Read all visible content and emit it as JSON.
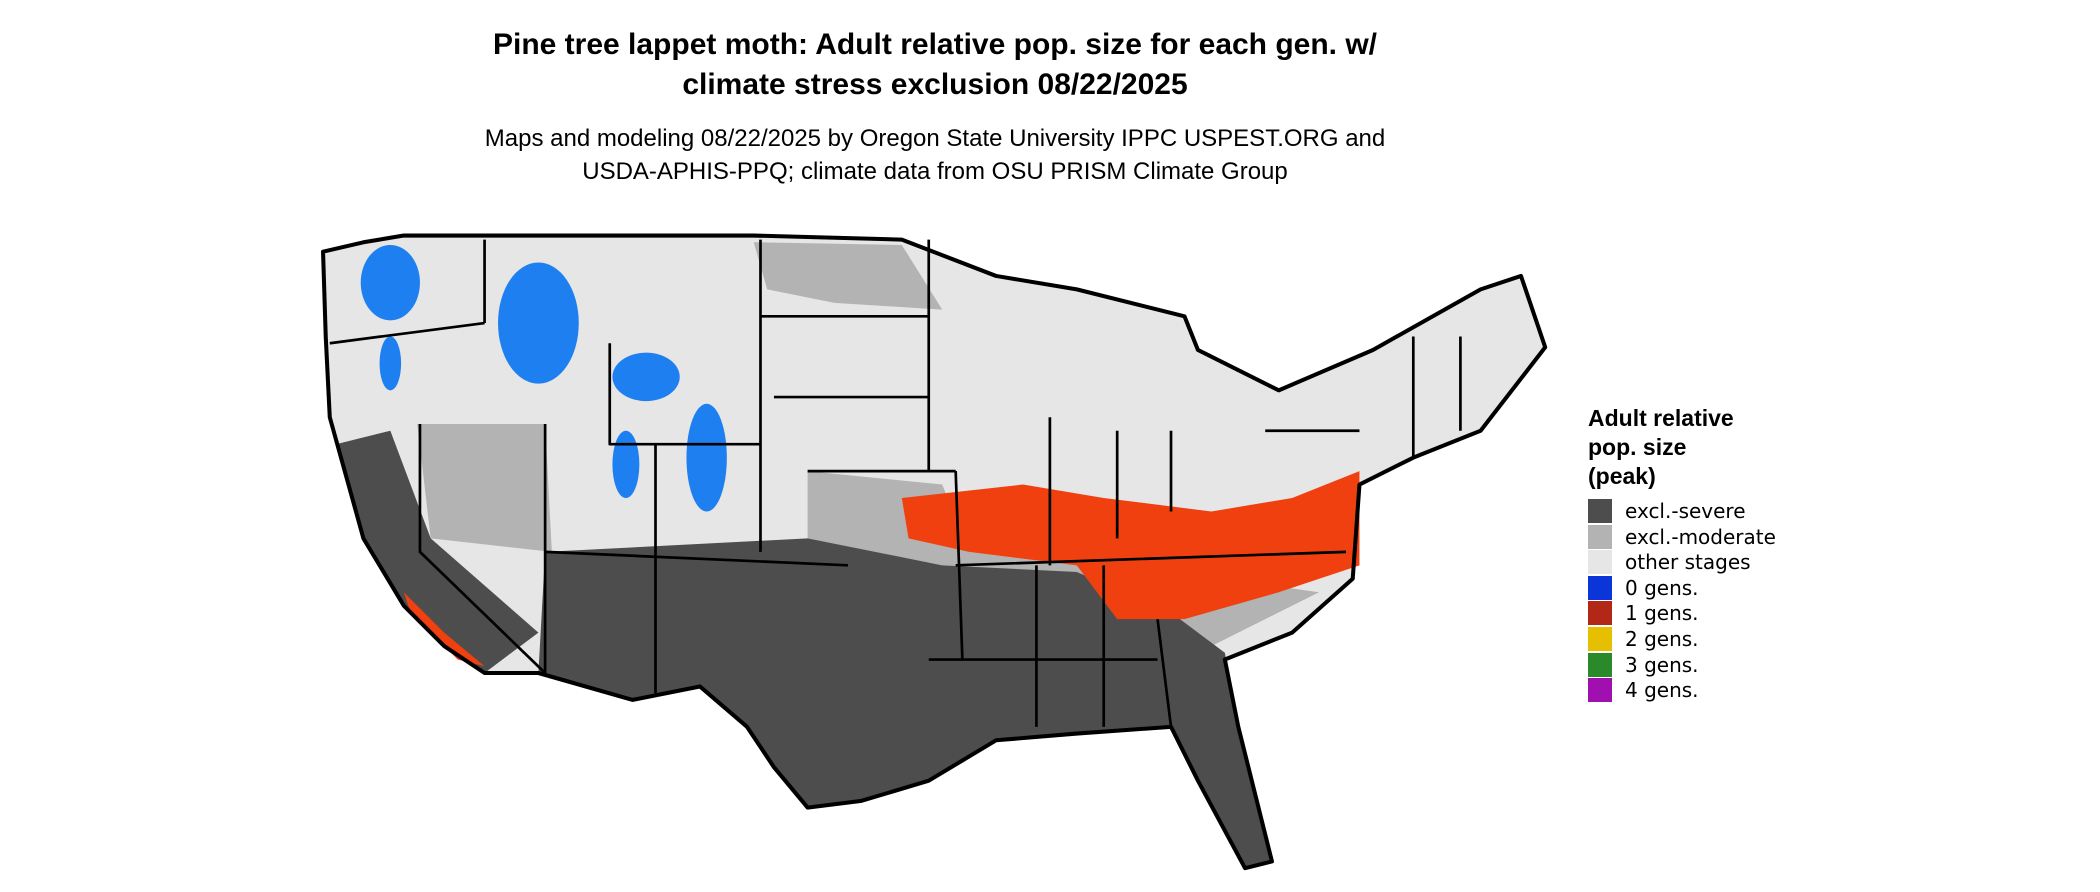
{
  "title": [
    "Pine tree lappet moth: Adult relative pop. size for each gen. w/",
    "climate stress exclusion 08/22/2025"
  ],
  "subtitle": [
    "Maps and modeling 08/22/2025 by Oregon State University IPPC USPEST.ORG and",
    "USDA-APHIS-PPQ; climate data from OSU PRISM Climate Group"
  ],
  "legend": {
    "title": [
      "Adult relative",
      "pop. size",
      "(peak)"
    ],
    "items": [
      {
        "label": "excl.-severe",
        "color": "#4d4d4d"
      },
      {
        "label": "excl.-moderate",
        "color": "#b3b3b3"
      },
      {
        "label": "other stages",
        "color": "#e6e6e6"
      },
      {
        "label": "0 gens.",
        "color": "#0a35d9"
      },
      {
        "label": "1 gens.",
        "color": "#b22715"
      },
      {
        "label": "2 gens.",
        "color": "#e6c000"
      },
      {
        "label": "3 gens.",
        "color": "#2a8a2a"
      },
      {
        "label": "4 gens.",
        "color": "#a010b0"
      }
    ]
  }
}
